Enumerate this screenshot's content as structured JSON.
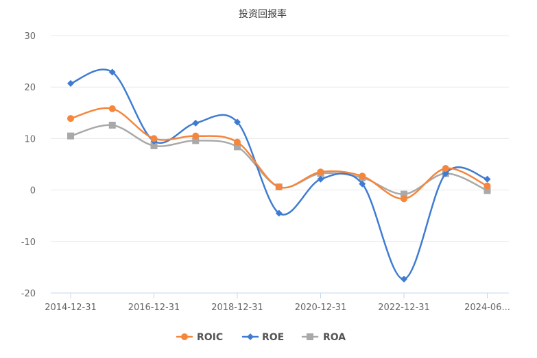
{
  "chart_data": {
    "type": "line",
    "title": "投资回报率",
    "xlabel": "",
    "ylabel": "",
    "ylim": [
      -20,
      30
    ],
    "y_ticks": [
      "30",
      "20",
      "10",
      "0",
      "-10",
      "-20"
    ],
    "x_tick_labels": [
      "2014-12-31",
      "2016-12-31",
      "2018-12-31",
      "2020-12-31",
      "2022-12-31",
      "2024-06..."
    ],
    "x": [
      "2014-12-31",
      "2015-12-31",
      "2016-12-31",
      "2017-12-31",
      "2018-12-31",
      "2019-12-31",
      "2020-12-31",
      "2021-12-31",
      "2022-12-31",
      "2023-12-31",
      "2024-06"
    ],
    "grid": true,
    "legend_position": "bottom-center",
    "series": [
      {
        "name": "ROIC",
        "color": "#f5863c",
        "marker": "circle",
        "values": [
          13.9,
          15.8,
          10.0,
          10.5,
          9.3,
          0.6,
          3.5,
          2.7,
          -1.7,
          4.2,
          0.8
        ]
      },
      {
        "name": "ROE",
        "color": "#3f7cd1",
        "marker": "diamond",
        "values": [
          20.7,
          22.9,
          9.5,
          13.0,
          13.2,
          -4.5,
          2.1,
          1.2,
          -17.3,
          3.2,
          2.1
        ]
      },
      {
        "name": "ROA",
        "color": "#a9a9a9",
        "marker": "square",
        "values": [
          10.5,
          12.6,
          8.6,
          9.6,
          8.4,
          0.6,
          3.2,
          2.4,
          -0.8,
          3.2,
          -0.1
        ]
      }
    ]
  }
}
